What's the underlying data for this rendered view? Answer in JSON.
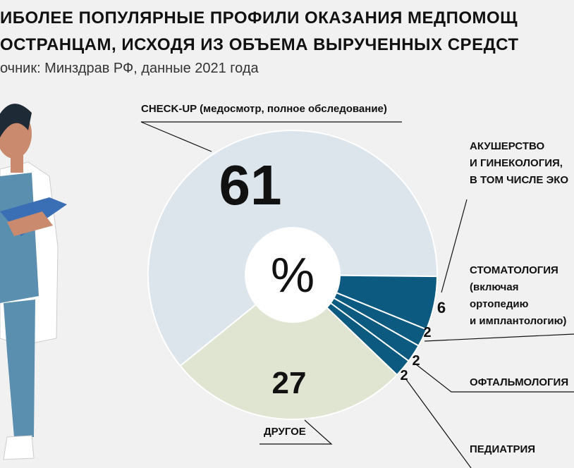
{
  "chart_data": {
    "type": "pie",
    "title": [
      "ИБОЛЕЕ ПОПУЛЯРНЫЕ ПРОФИЛИ ОКАЗАНИЯ МЕДПОМОЩ",
      "ОСТРАНЦАМ, ИСХОДЯ ИЗ ОБЪЕМА ВЫРУЧЕННЫХ СРЕДСТ"
    ],
    "subtitle": "очник: Минздрав РФ, данные 2021 года",
    "unit": "%",
    "categories": [
      "CHECK-UP (медосмотр, полное обследование)",
      "АКУШЕРСТВО\nИ ГИНЕКОЛОГИЯ,\nВ ТОМ ЧИСЛЕ ЭКО",
      "СТОМАТОЛОГИЯ\n(включая\nортопедию\nи имплантологию)",
      "ОФТАЛЬМОЛОГИЯ",
      "ПЕДИАТРИЯ",
      "ДРУГОЕ"
    ],
    "values": [
      61,
      6,
      2,
      2,
      2,
      27
    ],
    "colors": [
      "#dce4ec",
      "#0c5a80",
      "#0c5a80",
      "#0c5a80",
      "#0c5a80",
      "#dfe5d0"
    ]
  }
}
